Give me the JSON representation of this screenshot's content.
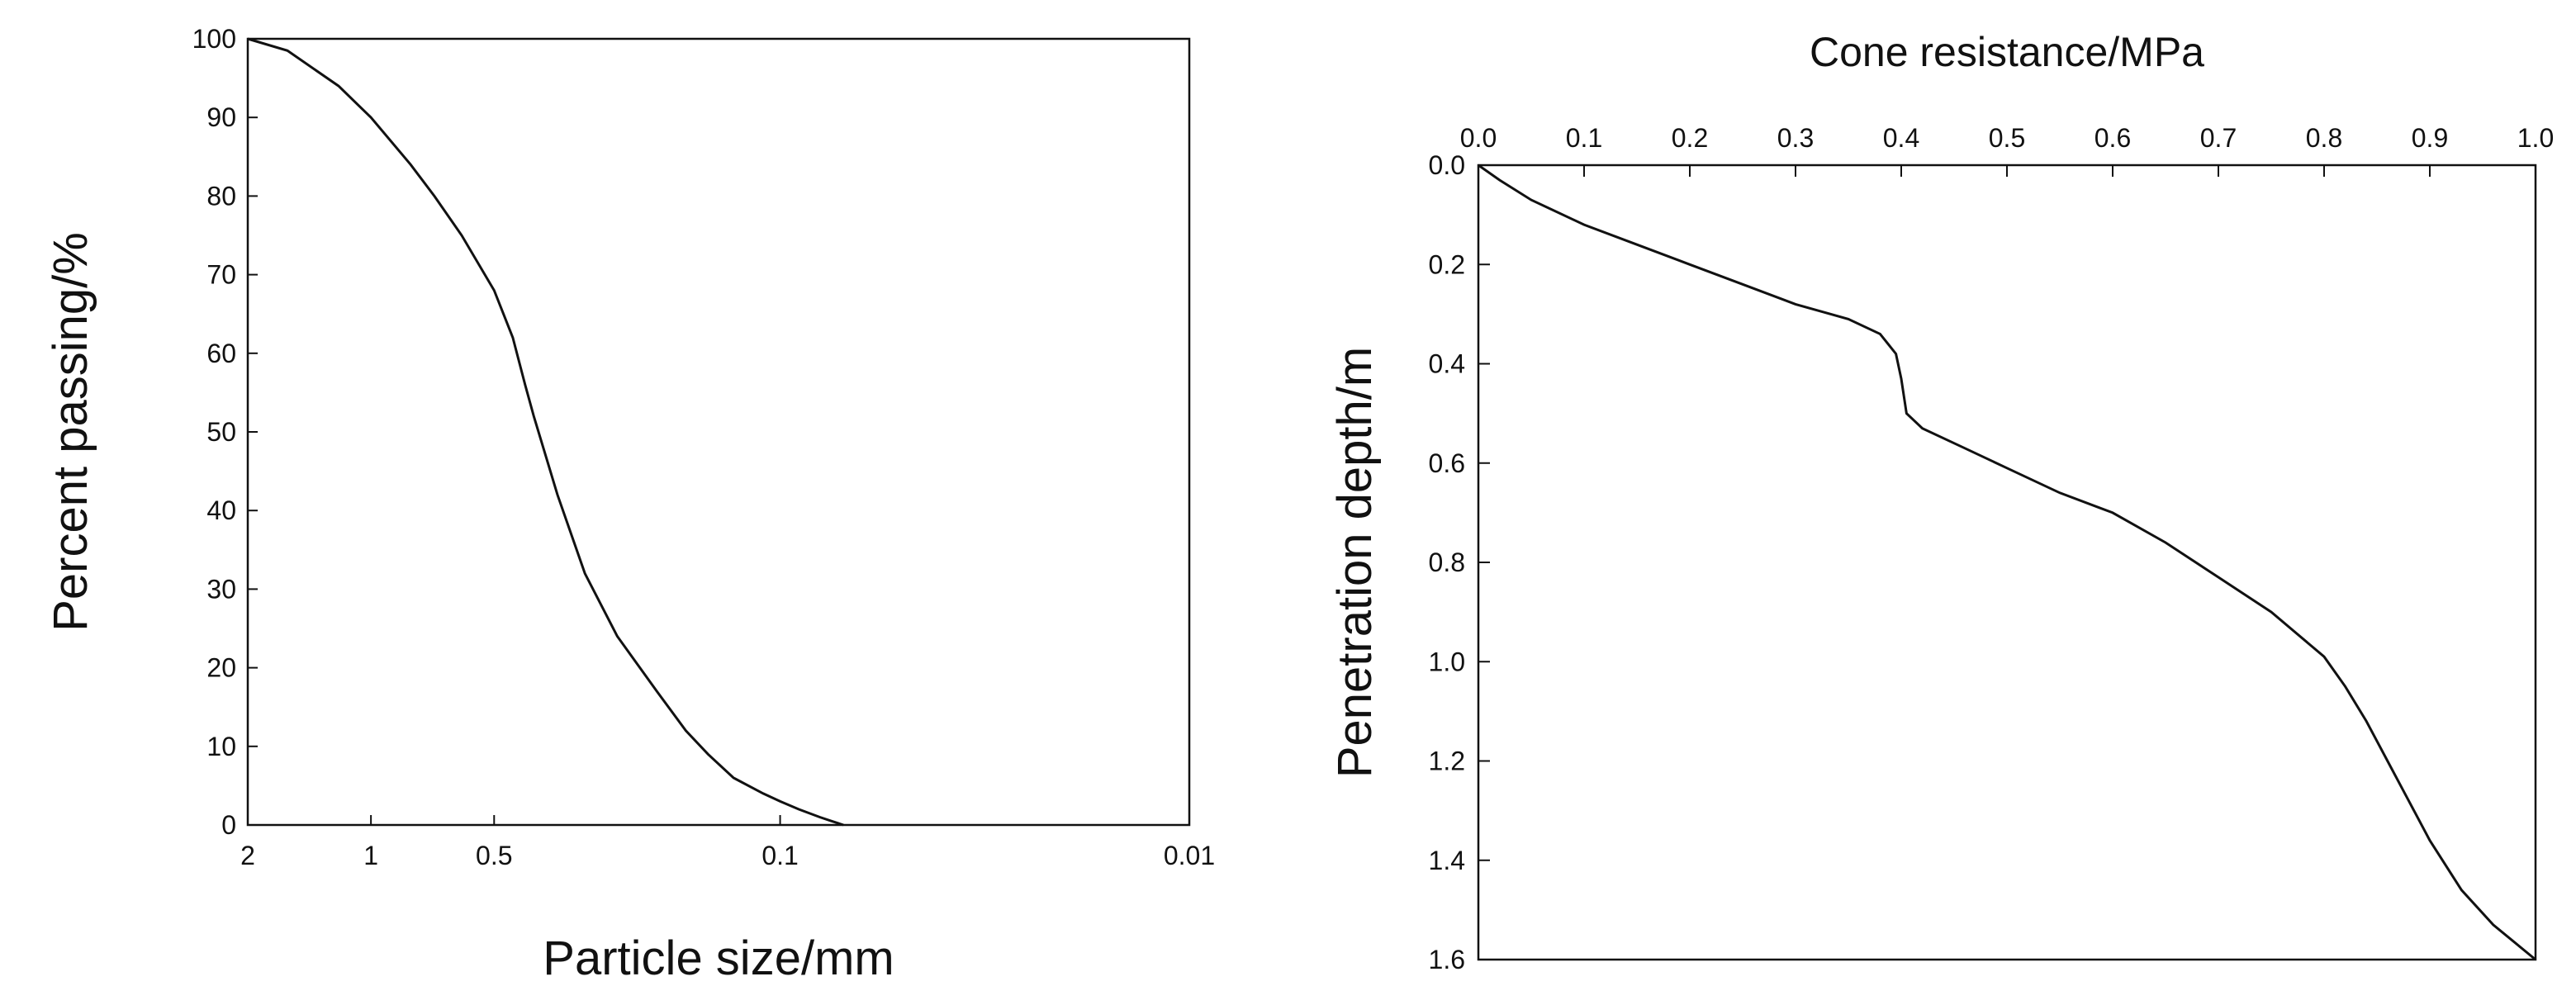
{
  "chart_data": [
    {
      "id": "grading",
      "type": "line",
      "xlabel": "Particle size/mm",
      "ylabel": "Percent passing/%",
      "xscale": "log",
      "xdirection": "reversed",
      "xlim": [
        2,
        0.01
      ],
      "ylim": [
        0,
        100
      ],
      "xticks": [
        2,
        1,
        0.5,
        0.1,
        0.01
      ],
      "xtick_labels": [
        "2",
        "1",
        "0.5",
        "0.1",
        "0.01"
      ],
      "yticks": [
        0,
        10,
        20,
        30,
        40,
        50,
        60,
        70,
        80,
        90,
        100
      ],
      "ytick_labels": [
        "0",
        "10",
        "20",
        "30",
        "40",
        "50",
        "60",
        "70",
        "80",
        "90",
        "100"
      ],
      "grid": false,
      "series": [
        {
          "x": [
            2.0,
            1.6,
            1.2,
            1.0,
            0.8,
            0.7,
            0.6,
            0.5,
            0.45,
            0.42,
            0.4,
            0.35,
            0.3,
            0.25,
            0.2,
            0.17,
            0.15,
            0.13,
            0.11,
            0.1,
            0.09,
            0.08,
            0.075,
            0.07
          ],
          "y": [
            100,
            98.5,
            94,
            90,
            84,
            80,
            75,
            68,
            62,
            56,
            52,
            42,
            32,
            24,
            17,
            12,
            9,
            6,
            4,
            3,
            2,
            1,
            0.5,
            0
          ]
        }
      ]
    },
    {
      "id": "cpt",
      "type": "line",
      "xlabel": "Cone resistance/MPa",
      "ylabel": "Penetration depth/m",
      "xaxis_position": "top",
      "ydirection": "reversed",
      "xlim": [
        0,
        1.0
      ],
      "ylim": [
        0,
        1.6
      ],
      "xticks": [
        0,
        0.1,
        0.2,
        0.3,
        0.4,
        0.5,
        0.6,
        0.7,
        0.8,
        0.9,
        1.0
      ],
      "xtick_labels": [
        "0.0",
        "0.1",
        "0.2",
        "0.3",
        "0.4",
        "0.5",
        "0.6",
        "0.7",
        "0.8",
        "0.9",
        "1.0"
      ],
      "yticks": [
        0,
        0.2,
        0.4,
        0.6,
        0.8,
        1.0,
        1.2,
        1.4,
        1.6
      ],
      "ytick_labels": [
        "0.0",
        "0.2",
        "0.4",
        "0.6",
        "0.8",
        "1.0",
        "1.2",
        "1.4",
        "1.6"
      ],
      "grid": false,
      "series": [
        {
          "x": [
            0.0,
            0.02,
            0.05,
            0.1,
            0.15,
            0.2,
            0.25,
            0.3,
            0.35,
            0.38,
            0.395,
            0.4,
            0.405,
            0.42,
            0.46,
            0.5,
            0.55,
            0.6,
            0.65,
            0.7,
            0.75,
            0.8,
            0.82,
            0.84,
            0.86,
            0.88,
            0.9,
            0.93,
            0.96,
            1.0
          ],
          "y": [
            0.0,
            0.03,
            0.07,
            0.12,
            0.16,
            0.2,
            0.24,
            0.28,
            0.31,
            0.34,
            0.38,
            0.43,
            0.5,
            0.53,
            0.57,
            0.61,
            0.66,
            0.7,
            0.76,
            0.83,
            0.9,
            0.99,
            1.05,
            1.12,
            1.2,
            1.28,
            1.36,
            1.46,
            1.53,
            1.6
          ]
        }
      ]
    }
  ]
}
